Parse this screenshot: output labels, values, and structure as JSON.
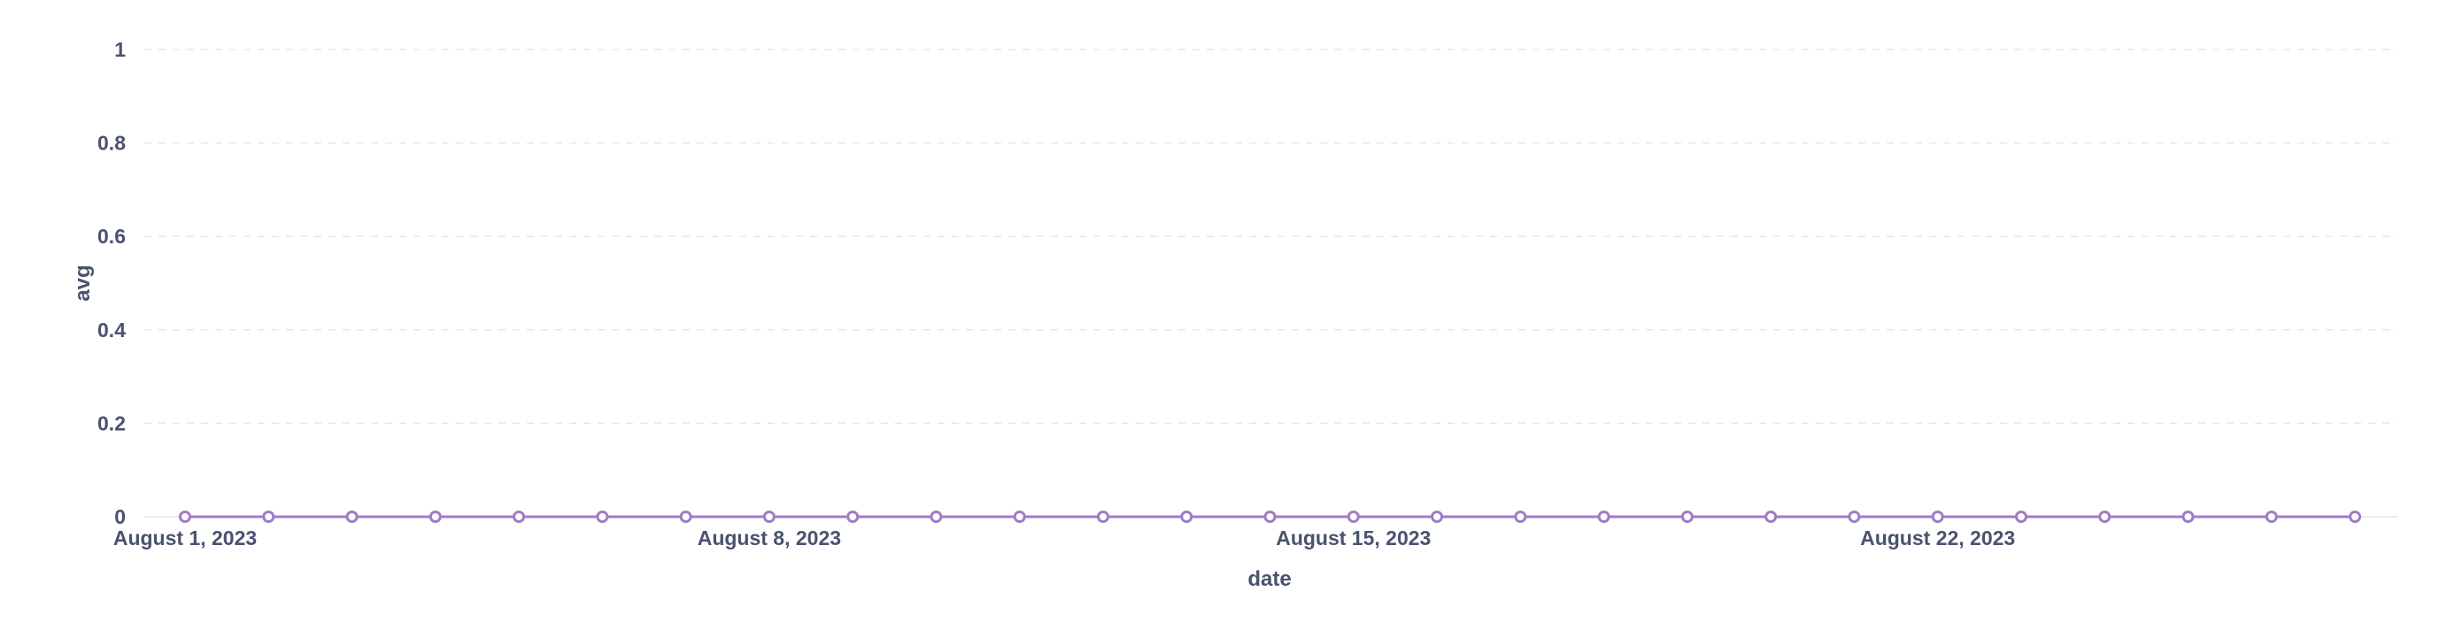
{
  "chart_data": {
    "type": "line",
    "xlabel": "date",
    "ylabel": "avg",
    "ylim": [
      0,
      1
    ],
    "yticks": [
      "0",
      "0.2",
      "0.4",
      "0.6",
      "0.8",
      "1"
    ],
    "y_tick_values": [
      0,
      0.2,
      0.4,
      0.6,
      0.8,
      1
    ],
    "xticks": [
      {
        "label": "August 1, 2023",
        "date": "2023-08-01"
      },
      {
        "label": "August 8, 2023",
        "date": "2023-08-08"
      },
      {
        "label": "August 15, 2023",
        "date": "2023-08-15"
      },
      {
        "label": "August 22, 2023",
        "date": "2023-08-22"
      }
    ],
    "grid": "horizontal dashed",
    "legend": "none",
    "series": [
      {
        "color": "#a07cc5",
        "marker": "hollow-circle",
        "points": [
          {
            "x": "2023-08-01",
            "y": 0
          },
          {
            "x": "2023-08-02",
            "y": 0
          },
          {
            "x": "2023-08-03",
            "y": 0
          },
          {
            "x": "2023-08-04",
            "y": 0
          },
          {
            "x": "2023-08-05",
            "y": 0
          },
          {
            "x": "2023-08-06",
            "y": 0
          },
          {
            "x": "2023-08-07",
            "y": 0
          },
          {
            "x": "2023-08-08",
            "y": 0
          },
          {
            "x": "2023-08-09",
            "y": 0
          },
          {
            "x": "2023-08-10",
            "y": 0
          },
          {
            "x": "2023-08-11",
            "y": 0
          },
          {
            "x": "2023-08-12",
            "y": 0
          },
          {
            "x": "2023-08-13",
            "y": 0
          },
          {
            "x": "2023-08-14",
            "y": 0
          },
          {
            "x": "2023-08-15",
            "y": 0
          },
          {
            "x": "2023-08-16",
            "y": 0
          },
          {
            "x": "2023-08-17",
            "y": 0
          },
          {
            "x": "2023-08-18",
            "y": 0
          },
          {
            "x": "2023-08-19",
            "y": 0
          },
          {
            "x": "2023-08-20",
            "y": 0
          },
          {
            "x": "2023-08-21",
            "y": 0
          },
          {
            "x": "2023-08-22",
            "y": 0
          },
          {
            "x": "2023-08-23",
            "y": 0
          },
          {
            "x": "2023-08-24",
            "y": 0
          },
          {
            "x": "2023-08-25",
            "y": 0
          },
          {
            "x": "2023-08-26",
            "y": 0
          },
          {
            "x": "2023-08-27",
            "y": 0
          }
        ]
      }
    ],
    "colors": {
      "text": "#4a5270",
      "grid": "#e6e7ea",
      "axis": "#e3e4e8",
      "marker_fill": "#ffffff"
    }
  }
}
